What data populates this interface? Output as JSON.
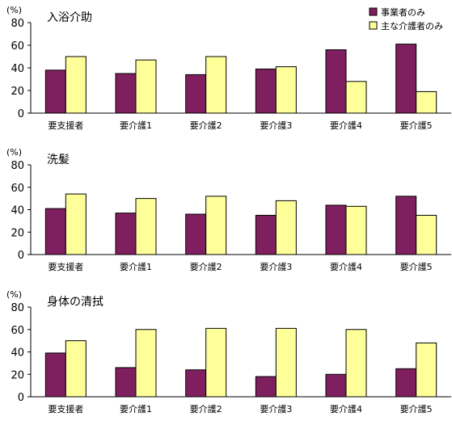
{
  "legend": [
    {
      "label": "事業者のみ",
      "color": "#7f1f5f"
    },
    {
      "label": "主な介護者のみ",
      "color": "#ffff99"
    }
  ],
  "chart_data": [
    {
      "type": "bar",
      "title": "入浴介助",
      "ylabel": "(%)",
      "ylim": [
        0,
        80
      ],
      "yticks": [
        0,
        20,
        40,
        60,
        80
      ],
      "categories": [
        "要支援者",
        "要介護1",
        "要介護2",
        "要介護3",
        "要介護4",
        "要介護5"
      ],
      "series": [
        {
          "name": "事業者のみ",
          "values": [
            38,
            35,
            34,
            39,
            56,
            61
          ]
        },
        {
          "name": "主な介護者のみ",
          "values": [
            50,
            47,
            50,
            41,
            28,
            19
          ]
        }
      ],
      "legend_position": "top-right"
    },
    {
      "type": "bar",
      "title": "洗髪",
      "ylabel": "(%)",
      "ylim": [
        0,
        80
      ],
      "yticks": [
        0,
        20,
        40,
        60,
        80
      ],
      "categories": [
        "要支援者",
        "要介護1",
        "要介護2",
        "要介護3",
        "要介護4",
        "要介護5"
      ],
      "series": [
        {
          "name": "事業者のみ",
          "values": [
            41,
            37,
            36,
            35,
            44,
            52
          ]
        },
        {
          "name": "主な介護者のみ",
          "values": [
            54,
            50,
            52,
            48,
            43,
            35
          ]
        }
      ]
    },
    {
      "type": "bar",
      "title": "身体の清拭",
      "ylabel": "(%)",
      "ylim": [
        0,
        80
      ],
      "yticks": [
        0,
        20,
        40,
        60,
        80
      ],
      "categories": [
        "要支援者",
        "要介護1",
        "要介護2",
        "要介護3",
        "要介護4",
        "要介護5"
      ],
      "series": [
        {
          "name": "事業者のみ",
          "values": [
            39,
            26,
            24,
            18,
            20,
            25
          ]
        },
        {
          "name": "主な介護者のみ",
          "values": [
            50,
            60,
            61,
            61,
            60,
            48
          ]
        }
      ]
    }
  ]
}
